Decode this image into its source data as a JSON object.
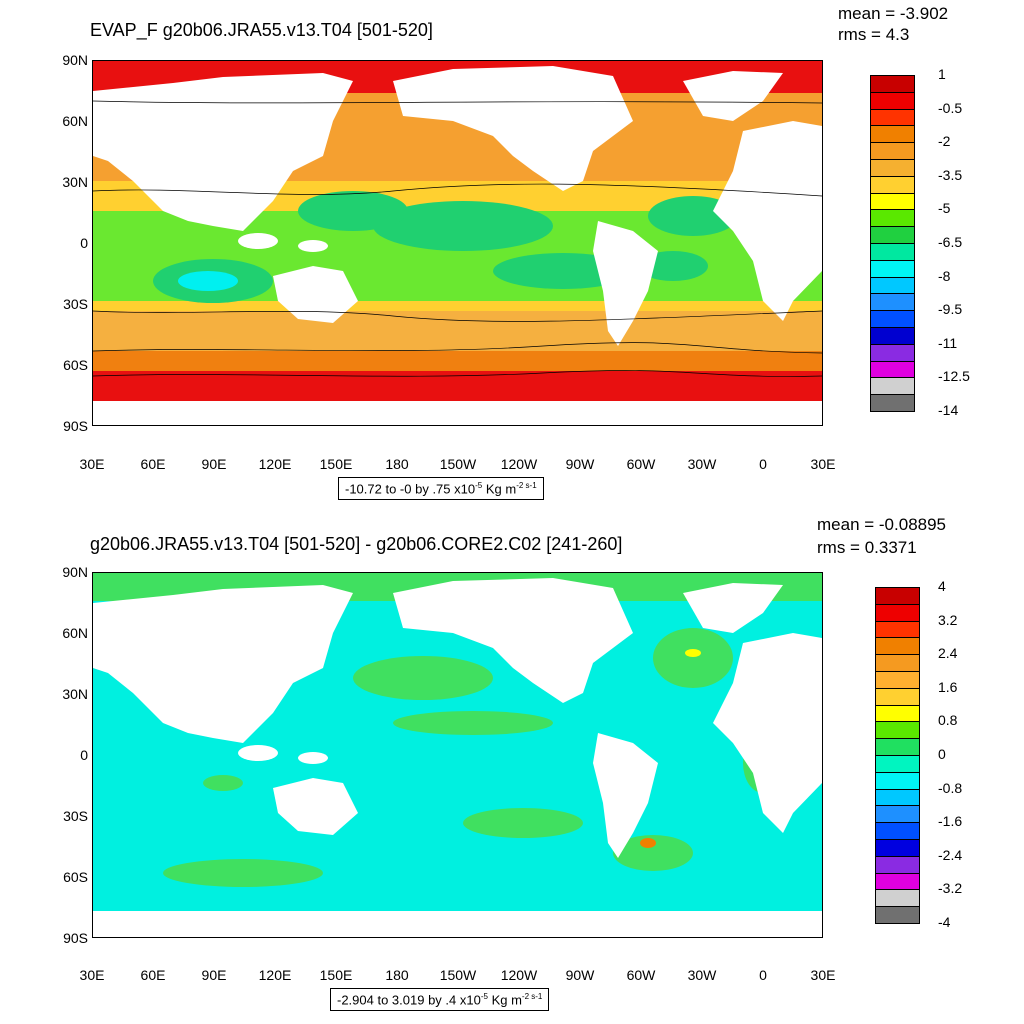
{
  "panels": [
    {
      "title": "EVAP_F g20b06.JRA55.v13.T04 [501-520]",
      "mean_text": "mean = -3.902",
      "rms_text": "rms = 4.3",
      "lat_labels": [
        "90N",
        "60N",
        "30N",
        "0",
        "30S",
        "60S",
        "90S"
      ],
      "lon_labels": [
        "30E",
        "60E",
        "90E",
        "120E",
        "150E",
        "180",
        "150W",
        "120W",
        "90W",
        "60W",
        "30W",
        "0",
        "30E"
      ],
      "info_prefix": "-10.72 to -0 by .75 x10",
      "info_exp": "-5",
      "info_unit": " Kg m",
      "info_unit_exp": "-2 s-1",
      "colorbar_labels": [
        "1",
        "-0.5",
        "-2",
        "-3.5",
        "-5",
        "-6.5",
        "-8",
        "-9.5",
        "-11",
        "-12.5",
        "-14"
      ],
      "colorbar_colors": [
        "#c80000",
        "#ee0000",
        "#ff3300",
        "#f08000",
        "#f59a20",
        "#f5b030",
        "#ffd030",
        "#ffff00",
        "#5ae800",
        "#20d040",
        "#00e8a0",
        "#00f5f5",
        "#00c8ff",
        "#1e90ff",
        "#0050ff",
        "#0000d0",
        "#8a2be2",
        "#e000e0",
        "#d0d0d0",
        "#707070"
      ]
    },
    {
      "title": "g20b06.JRA55.v13.T04 [501-520] - g20b06.CORE2.C02 [241-260]",
      "mean_text": "mean = -0.08895",
      "rms_text": "rms = 0.3371",
      "lat_labels": [
        "90N",
        "60N",
        "30N",
        "0",
        "30S",
        "60S",
        "90S"
      ],
      "lon_labels": [
        "30E",
        "60E",
        "90E",
        "120E",
        "150E",
        "180",
        "150W",
        "120W",
        "90W",
        "60W",
        "30W",
        "0",
        "30E"
      ],
      "info_prefix": "-2.904 to 3.019 by .4 x10",
      "info_exp": "-5",
      "info_unit": " Kg m",
      "info_unit_exp": "-2 s-1",
      "colorbar_labels": [
        "4",
        "3.2",
        "2.4",
        "1.6",
        "0.8",
        "0",
        "-0.8",
        "-1.6",
        "-2.4",
        "-3.2",
        "-4"
      ],
      "colorbar_colors": [
        "#c80000",
        "#ee0000",
        "#ff3300",
        "#f08000",
        "#f59a20",
        "#ffb030",
        "#ffd030",
        "#ffff00",
        "#5ae800",
        "#20e060",
        "#00f5c0",
        "#00f5f5",
        "#00c8ff",
        "#1e90ff",
        "#0050ff",
        "#0000e0",
        "#8a2be2",
        "#e000e0",
        "#d0d0d0",
        "#707070"
      ]
    }
  ]
}
